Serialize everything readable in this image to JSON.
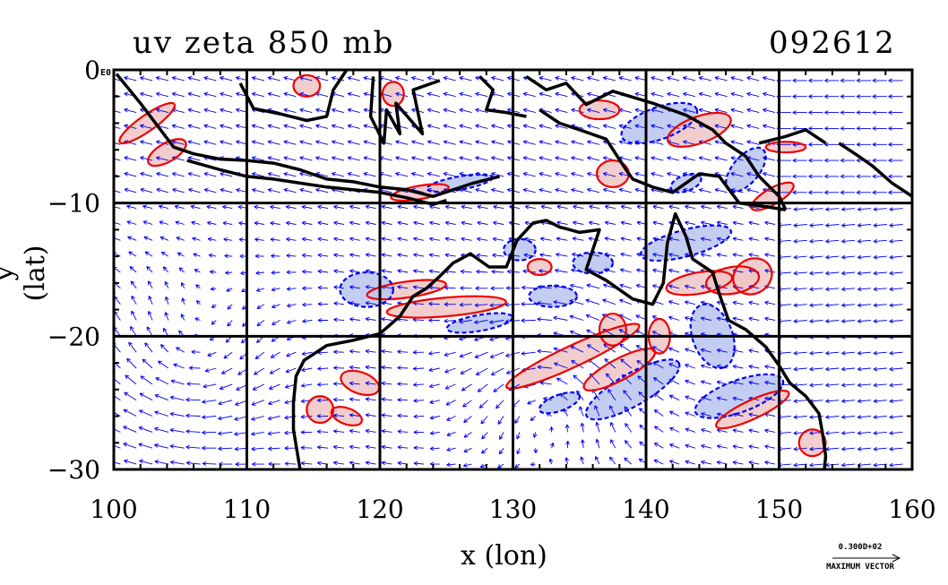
{
  "chart_data": {
    "type": "vector-contour map",
    "title": "uv zeta 850 mb",
    "run_label": "092612",
    "xlabel": "x (lon)",
    "ylabel": "y (lat)",
    "xlim": [
      100,
      160
    ],
    "ylim": [
      -30,
      0
    ],
    "x_ticks": [
      "100",
      "110",
      "120",
      "130",
      "140",
      "150",
      "160"
    ],
    "y_ticks": [
      "0",
      "−10",
      "−20",
      "−30"
    ],
    "corner_label": "E0",
    "grid": true,
    "grid_lines_lon": [
      110,
      120,
      130,
      140,
      150
    ],
    "grid_lines_lat": [
      -10,
      -20
    ],
    "vector_key_value": "0.300D+02",
    "vector_key_label": "MAXIMUM VECTOR",
    "colors": {
      "vectors": "#0000ee",
      "positive_vorticity": "#ee0000",
      "negative_vorticity": "#0000ee",
      "negative_fill": "#b8c4f0",
      "positive_fill": "#f0c4c4",
      "coastline": "#000000"
    },
    "coastlines": [
      {
        "name": "Sumatra-Java",
        "points": [
          [
            100.2,
            -0.3
          ],
          [
            102,
            -2.5
          ],
          [
            104.5,
            -5.8
          ],
          [
            106,
            -6.3
          ],
          [
            108,
            -6.7
          ],
          [
            110,
            -6.8
          ],
          [
            112,
            -7.0
          ],
          [
            114,
            -7.5
          ],
          [
            116,
            -8.2
          ],
          [
            118,
            -8.4
          ],
          [
            120,
            -8.8
          ],
          [
            122,
            -9.0
          ],
          [
            124,
            -9.5
          ],
          [
            125.5,
            -9.0
          ],
          [
            127,
            -8.5
          ],
          [
            129,
            -8.0
          ]
        ]
      },
      {
        "name": "Java-south",
        "points": [
          [
            105.5,
            -6.8
          ],
          [
            108,
            -7.5
          ],
          [
            110,
            -8.0
          ],
          [
            112,
            -8.2
          ],
          [
            114,
            -8.5
          ],
          [
            116,
            -8.8
          ],
          [
            118,
            -9.0
          ],
          [
            120,
            -9.2
          ],
          [
            122,
            -9.6
          ],
          [
            124,
            -10.1
          ],
          [
            125,
            -9.8
          ]
        ]
      },
      {
        "name": "Borneo",
        "points": [
          [
            109.5,
            -1.0
          ],
          [
            110.5,
            -2.9
          ],
          [
            112.5,
            -3.3
          ],
          [
            114.5,
            -3.8
          ],
          [
            116,
            -3.5
          ],
          [
            116.5,
            -1.5
          ],
          [
            117.5,
            0.0
          ]
        ]
      },
      {
        "name": "Sulawesi",
        "points": [
          [
            119.5,
            -0.5
          ],
          [
            119.3,
            -3.5
          ],
          [
            120.3,
            -5.5
          ],
          [
            120.5,
            -3.0
          ],
          [
            121.5,
            -4.8
          ],
          [
            121.2,
            -2.5
          ],
          [
            123.2,
            -4.8
          ],
          [
            122.5,
            -1.5
          ],
          [
            124.5,
            -0.8
          ]
        ]
      },
      {
        "name": "Halmahera",
        "points": [
          [
            127.5,
            -0.5
          ],
          [
            128.5,
            -1.5
          ],
          [
            128,
            -3
          ],
          [
            129.5,
            -3.2
          ],
          [
            131,
            -3.5
          ]
        ]
      },
      {
        "name": "New Guinea north",
        "points": [
          [
            131,
            -0.5
          ],
          [
            132.5,
            -1.5
          ],
          [
            134,
            -1.0
          ],
          [
            135.5,
            -2.6
          ],
          [
            137.5,
            -1.6
          ],
          [
            140.5,
            -2.5
          ],
          [
            143,
            -3.4
          ],
          [
            145,
            -4.5
          ],
          [
            146,
            -5.5
          ],
          [
            147.5,
            -6.5
          ],
          [
            148.5,
            -8.0
          ],
          [
            150,
            -9.5
          ],
          [
            150.5,
            -10.5
          ]
        ]
      },
      {
        "name": "New Guinea south",
        "points": [
          [
            132,
            -3.0
          ],
          [
            133.5,
            -4.0
          ],
          [
            135,
            -4.5
          ],
          [
            137,
            -5.2
          ],
          [
            138.5,
            -7.5
          ],
          [
            139,
            -8.2
          ],
          [
            140.5,
            -8.8
          ],
          [
            142,
            -9.2
          ],
          [
            144,
            -7.8
          ],
          [
            145.5,
            -8.0
          ],
          [
            147,
            -10.0
          ],
          [
            148.5,
            -10.2
          ],
          [
            150.5,
            -10.5
          ]
        ]
      },
      {
        "name": "New Britain",
        "points": [
          [
            148.5,
            -5.5
          ],
          [
            150.5,
            -5.0
          ],
          [
            152,
            -4.5
          ],
          [
            153.5,
            -5.5
          ]
        ]
      },
      {
        "name": "Bougainville",
        "points": [
          [
            154.5,
            -5.5
          ],
          [
            156,
            -6.5
          ],
          [
            157,
            -7.2
          ],
          [
            158.5,
            -8.5
          ],
          [
            160,
            -9.5
          ]
        ]
      },
      {
        "name": "Australia",
        "points": [
          [
            114,
            -30
          ],
          [
            113.5,
            -27
          ],
          [
            113.5,
            -25
          ],
          [
            113.7,
            -23
          ],
          [
            114.3,
            -21.8
          ],
          [
            116,
            -20.7
          ],
          [
            118,
            -20.3
          ],
          [
            120,
            -19.8
          ],
          [
            121.5,
            -18.5
          ],
          [
            122.5,
            -17
          ],
          [
            123.5,
            -16.4
          ],
          [
            124.5,
            -15.5
          ],
          [
            125.5,
            -14.5
          ],
          [
            126.8,
            -13.8
          ],
          [
            128.2,
            -14.8
          ],
          [
            129.5,
            -14.8
          ],
          [
            130.3,
            -12.8
          ],
          [
            131.5,
            -11.5
          ],
          [
            132.5,
            -11.3
          ],
          [
            133.5,
            -11.8
          ],
          [
            135,
            -12.2
          ],
          [
            136.5,
            -12.0
          ],
          [
            136.0,
            -13.5
          ],
          [
            135.5,
            -15.0
          ],
          [
            137,
            -15.8
          ],
          [
            139,
            -17.2
          ],
          [
            140.5,
            -17.6
          ],
          [
            141.3,
            -16.0
          ],
          [
            141.6,
            -13.0
          ],
          [
            142.2,
            -10.8
          ],
          [
            143.0,
            -12.5
          ],
          [
            143.5,
            -14.2
          ],
          [
            145.0,
            -15.2
          ],
          [
            145.5,
            -16.8
          ],
          [
            146.2,
            -18.8
          ],
          [
            147.5,
            -19.5
          ],
          [
            149,
            -20.8
          ],
          [
            150,
            -22.2
          ],
          [
            150.8,
            -23.5
          ],
          [
            152.0,
            -24.5
          ],
          [
            153.0,
            -25.8
          ],
          [
            153.3,
            -27.5
          ],
          [
            153.5,
            -29.0
          ],
          [
            153.4,
            -30
          ]
        ]
      }
    ]
  }
}
